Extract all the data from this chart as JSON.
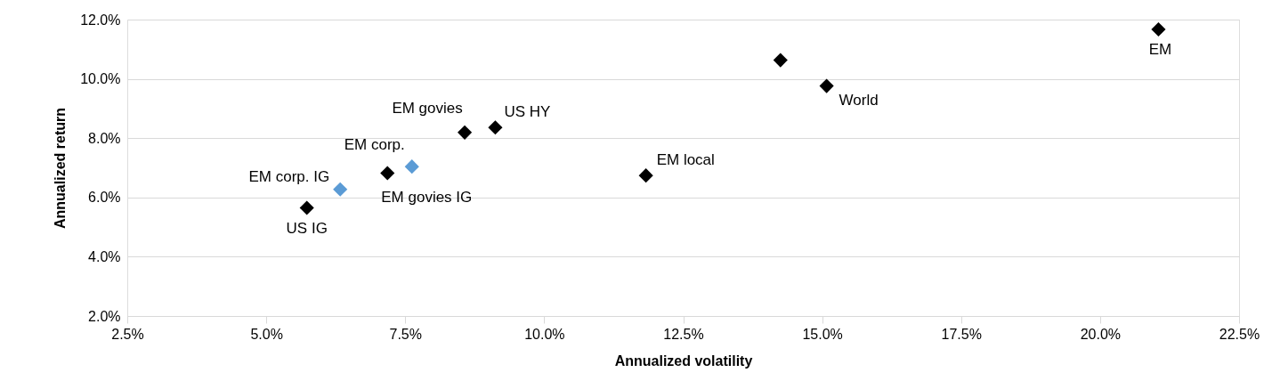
{
  "chart_data": {
    "type": "scatter",
    "xlabel": "Annualized volatility",
    "ylabel": "Annualized return",
    "x": [
      5.73,
      6.33,
      7.18,
      7.62,
      8.57,
      9.12,
      11.83,
      14.25,
      15.08,
      21.05
    ],
    "values": [
      5.65,
      6.27,
      6.82,
      7.04,
      8.19,
      8.36,
      6.74,
      10.63,
      9.76,
      11.67
    ],
    "colors": [
      "#000000",
      "#5b9bd5",
      "#000000",
      "#5b9bd5",
      "#000000",
      "#000000",
      "#000000",
      "#000000",
      "#000000",
      "#000000"
    ],
    "marker": "diamond",
    "grid": "y",
    "legend": false,
    "xlim": [
      2.5,
      22.5
    ],
    "xticks": [
      {
        "value": 2.5,
        "label": "2.5%"
      },
      {
        "value": 5,
        "label": "5.0%"
      },
      {
        "value": 7.5,
        "label": "7.5%"
      },
      {
        "value": 10,
        "label": "10.0%"
      },
      {
        "value": 12.5,
        "label": "12.5%"
      },
      {
        "value": 15,
        "label": "15.0%"
      },
      {
        "value": 17.5,
        "label": "17.5%"
      },
      {
        "value": 20,
        "label": "20.0%"
      },
      {
        "value": 22.5,
        "label": "22.5%"
      }
    ],
    "ylim": [
      2,
      12
    ],
    "yticks": [
      {
        "value": 2,
        "label": "2.0%"
      },
      {
        "value": 4,
        "label": "4.0%"
      },
      {
        "value": 6,
        "label": "6.0%"
      },
      {
        "value": 8,
        "label": "8.0%"
      },
      {
        "value": 10,
        "label": "10.0%"
      },
      {
        "value": 12,
        "label": "12.0%"
      }
    ],
    "annotations": [
      {
        "text": "US IG",
        "x": 5.73,
        "y": 5.65
      },
      {
        "text": "EM corp. IG",
        "x": 6.33,
        "y": 6.27
      },
      {
        "text": "EM govies IG",
        "x": 7.18,
        "y": 6.82
      },
      {
        "text": "EM corp.",
        "x": 7.62,
        "y": 7.04
      },
      {
        "text": "EM govies",
        "x": 8.57,
        "y": 8.19
      },
      {
        "text": "US HY",
        "x": 9.12,
        "y": 8.36
      },
      {
        "text": "EM local",
        "x": 11.83,
        "y": 6.74
      },
      {
        "text": "World",
        "x": 15.08,
        "y": 9.76
      },
      {
        "text": "EM",
        "x": 21.05,
        "y": 11.67
      }
    ]
  }
}
